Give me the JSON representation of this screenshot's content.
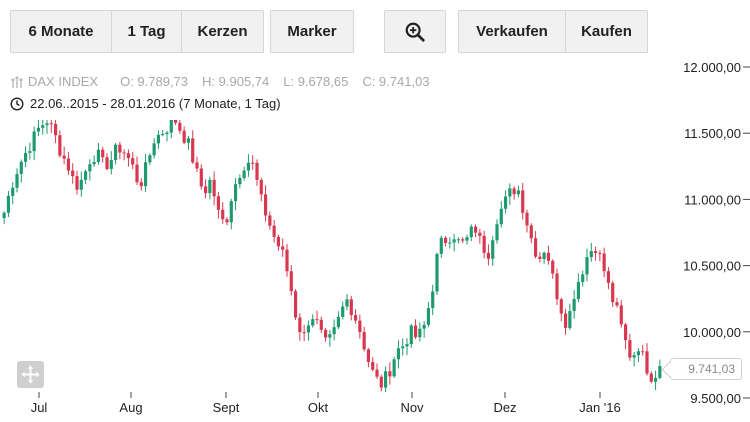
{
  "toolbar": {
    "period_label": "6 Monate",
    "interval_label": "1 Tag",
    "chart_type_label": "Kerzen",
    "marker_label": "Marker",
    "zoom_icon": "zoom-in-icon",
    "sell_label": "Verkaufen",
    "buy_label": "Kaufen"
  },
  "instrument": {
    "name": "DAX INDEX",
    "open": "O: 9.789,73",
    "high": "H: 9.905,74",
    "low": "L: 9.678,65",
    "close": "C: 9.741,03"
  },
  "range": {
    "text": "22.06..2015 - 28.01.2016 (7 Monate, 1 Tag)"
  },
  "last_price": "9.741,03",
  "colors": {
    "up": "#1e9a6e",
    "down": "#d8384f",
    "grid": "#d9d9d9",
    "axis_text": "#222222"
  },
  "chart_data": {
    "type": "candlestick",
    "x_labels": [
      "Jul",
      "Aug",
      "Sept",
      "Okt",
      "Nov",
      "Dez",
      "Jan '16"
    ],
    "y_labels": [
      "12.000,00",
      "11.500,00",
      "11.000,00",
      "10.500,00",
      "10.000,00",
      "9.500,00"
    ],
    "y_ticks": [
      12000,
      11500,
      11000,
      10500,
      10000,
      9500
    ],
    "ylim": [
      9500,
      12000
    ],
    "close_path": [
      10900,
      11100,
      11250,
      11350,
      11450,
      11550,
      11600,
      11500,
      11350,
      11250,
      11100,
      11150,
      11300,
      11350,
      11250,
      11300,
      11400,
      11350,
      11250,
      11100,
      11250,
      11450,
      11500,
      11550,
      11600,
      11500,
      11400,
      11200,
      11050,
      11150,
      10900,
      10800,
      11050,
      11200,
      11300,
      11250,
      11000,
      10850,
      10700,
      10600,
      10400,
      10100,
      9950,
      10150,
      10050,
      9900,
      9950,
      10100,
      10250,
      10150,
      10000,
      9800,
      9650,
      9600,
      9700,
      9850,
      9900,
      10000,
      9950,
      10050,
      10300,
      10650,
      10700,
      10750,
      10650,
      10700,
      10800,
      10650,
      10600,
      10850,
      10950,
      11050,
      11100,
      10900,
      10700,
      10550,
      10650,
      10400,
      10200,
      10050,
      10300,
      10450,
      10600,
      10650,
      10500,
      10300,
      10150,
      9950,
      9800,
      9900,
      9750,
      9650,
      9741
    ]
  }
}
